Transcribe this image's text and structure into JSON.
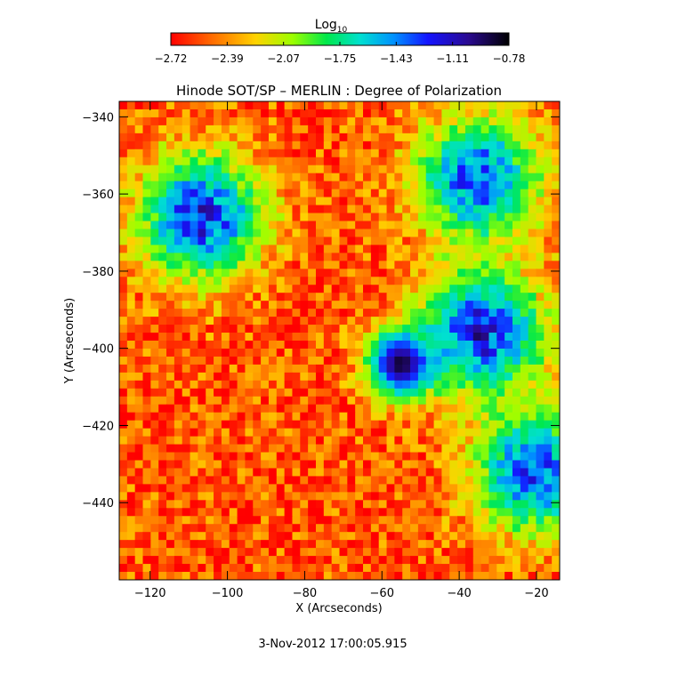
{
  "chart_data": {
    "type": "heatmap",
    "title": "Hinode SOT/SP – MERLIN : Degree of Polarization",
    "xlabel": "X (Arcseconds)",
    "ylabel": "Y (Arcseconds)",
    "xlim": [
      -128,
      -14
    ],
    "ylim": [
      -460,
      -336
    ],
    "x_ticks": [
      -120,
      -100,
      -80,
      -60,
      -40,
      -20
    ],
    "y_ticks": [
      -340,
      -360,
      -380,
      -400,
      -420,
      -440
    ],
    "colorbar": {
      "title_base": "Log",
      "title_sub": "10",
      "ticks": [
        "−2.72",
        "−2.39",
        "−2.07",
        "−1.75",
        "−1.43",
        "−1.11",
        "−0.78"
      ],
      "range": [
        -2.72,
        -0.78
      ],
      "colormap": [
        "#ff0000",
        "#ff6a00",
        "#ffd200",
        "#9cff00",
        "#00e84a",
        "#00e0d0",
        "#0090ff",
        "#1414ff",
        "#2a0a90",
        "#000000"
      ],
      "note": "rainbow colormap from red (low) to black (high)"
    },
    "features": [
      {
        "name": "pore",
        "x": -55,
        "y": -404,
        "log_value": -0.85
      },
      {
        "name": "network patch",
        "x": -107,
        "y": -366,
        "log_value": -1.2
      },
      {
        "name": "network patch",
        "x": -34,
        "y": -396,
        "log_value": -1.2
      },
      {
        "name": "network patch",
        "x": -35,
        "y": -356,
        "log_value": -1.3
      },
      {
        "name": "network patch",
        "x": -20,
        "y": -432,
        "log_value": -1.3
      }
    ],
    "background_log_value": -2.55,
    "timestamp": "3-Nov-2012 17:00:05.915",
    "grid": false,
    "legend": "colorbar top-center"
  }
}
